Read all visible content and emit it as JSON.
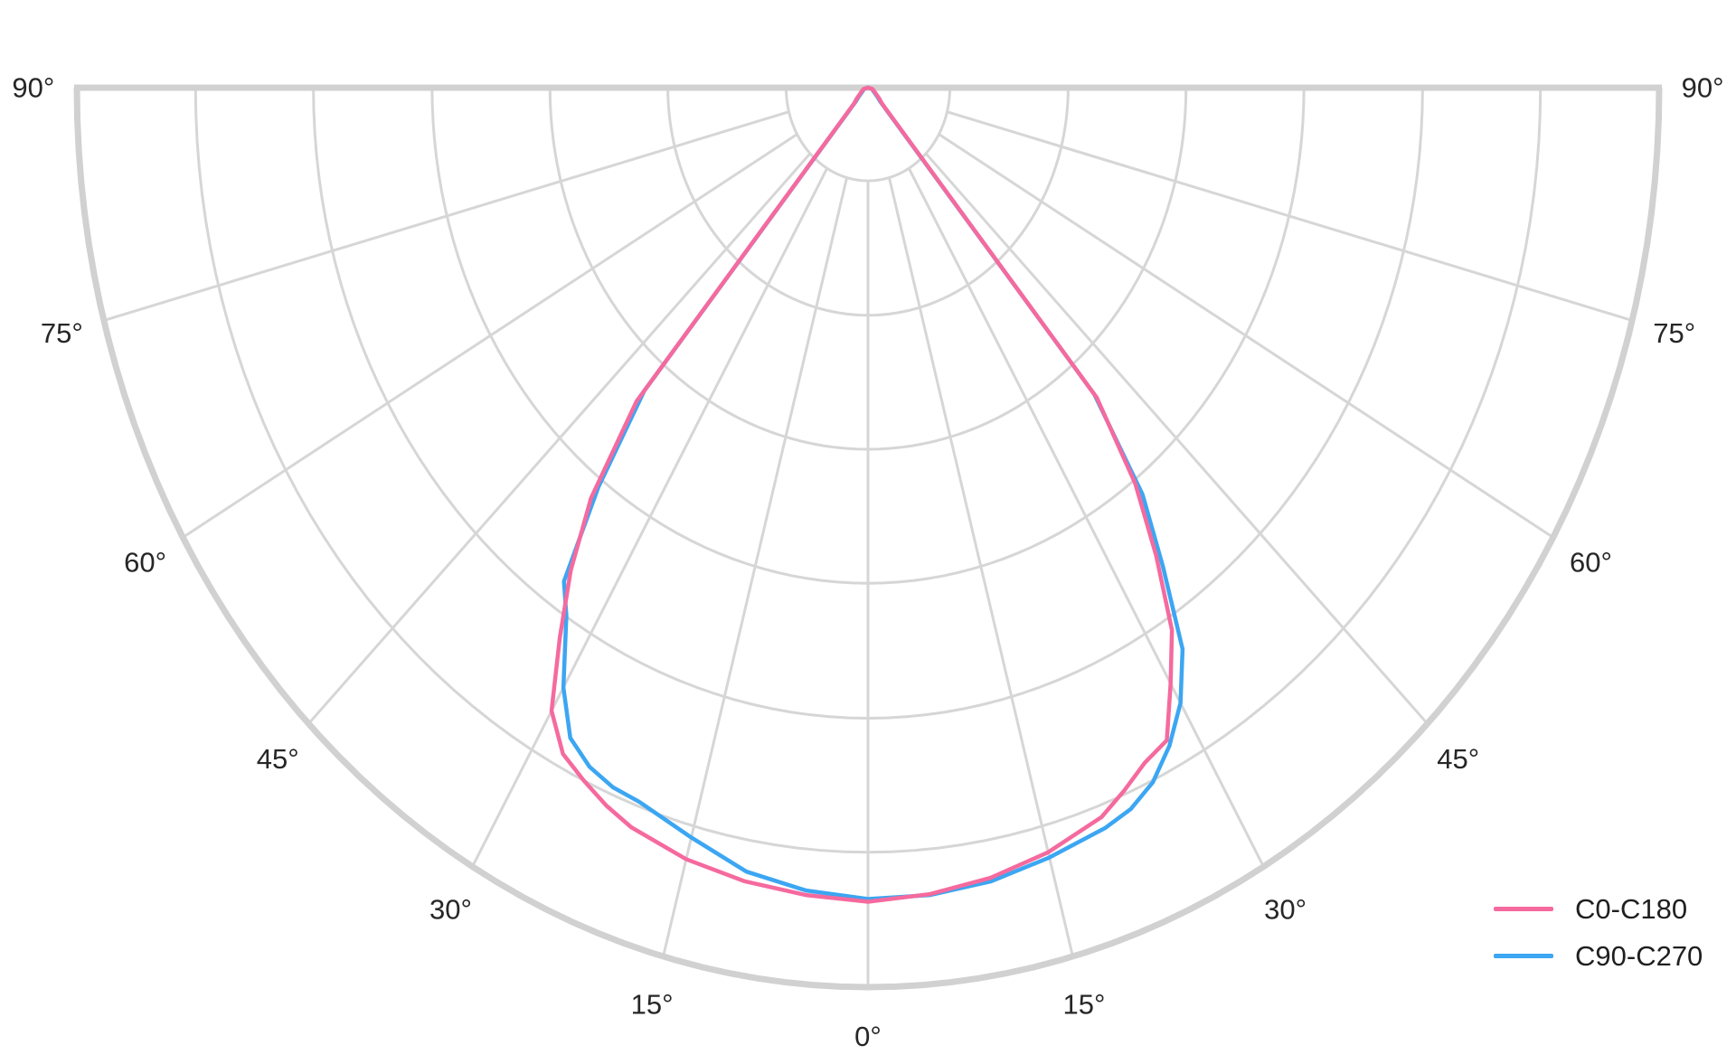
{
  "chart_data": {
    "type": "line",
    "subtype": "polar-photometric-half",
    "title": "",
    "angle_unit": "degrees",
    "angle_ticks": [
      0,
      15,
      30,
      45,
      60,
      75,
      90
    ],
    "angle_tick_suffix": "°",
    "angle_labels_both_sides": true,
    "ring_fractions": [
      0.1035,
      0.253,
      0.402,
      0.551,
      0.701,
      0.85,
      1.0
    ],
    "radial_tick_labels_shown": false,
    "grid": true,
    "legend_position": "bottom-right",
    "colors": {
      "grid": "#d6d6d6",
      "outline": "#d1d1d1",
      "label": "#262626",
      "background": "#ffffff"
    },
    "series": [
      {
        "name": "C0-C180",
        "color": "#f56a9e",
        "points": [
          [
            -90,
            0
          ],
          [
            -75,
            0.006
          ],
          [
            -60,
            0.01
          ],
          [
            -50,
            0.018
          ],
          [
            -45,
            0.025
          ],
          [
            -40,
            0.455
          ],
          [
            -37.5,
            0.575
          ],
          [
            -35,
            0.655
          ],
          [
            -32.5,
            0.725
          ],
          [
            -30,
            0.8
          ],
          [
            -27.5,
            0.835
          ],
          [
            -25,
            0.85
          ],
          [
            -22.5,
            0.864
          ],
          [
            -20,
            0.875
          ],
          [
            -15,
            0.888
          ],
          [
            -10,
            0.896
          ],
          [
            -5,
            0.901
          ],
          [
            0,
            0.905
          ],
          [
            5,
            0.9
          ],
          [
            10,
            0.892
          ],
          [
            15,
            0.88
          ],
          [
            20,
            0.863
          ],
          [
            22.5,
            0.846
          ],
          [
            25,
            0.828
          ],
          [
            27.5,
            0.818
          ],
          [
            30,
            0.765
          ],
          [
            32.5,
            0.715
          ],
          [
            35,
            0.635
          ],
          [
            37.5,
            0.555
          ],
          [
            40,
            0.45
          ],
          [
            45,
            0.025
          ],
          [
            50,
            0.018
          ],
          [
            60,
            0.01
          ],
          [
            75,
            0.006
          ],
          [
            90,
            0
          ]
        ]
      },
      {
        "name": "C90-C270",
        "color": "#3ca6f2",
        "points": [
          [
            -90,
            0
          ],
          [
            -75,
            0.005
          ],
          [
            -60,
            0.008
          ],
          [
            -50,
            0.015
          ],
          [
            -45,
            0.022
          ],
          [
            -40,
            0.44
          ],
          [
            -37.5,
            0.56
          ],
          [
            -35,
            0.67
          ],
          [
            -33,
            0.7
          ],
          [
            -31,
            0.745
          ],
          [
            -30,
            0.77
          ],
          [
            -27.5,
            0.815
          ],
          [
            -25,
            0.833
          ],
          [
            -22.5,
            0.842
          ],
          [
            -20,
            0.845
          ],
          [
            -15,
            0.863
          ],
          [
            -10,
            0.885
          ],
          [
            -5,
            0.896
          ],
          [
            0,
            0.902
          ],
          [
            5,
            0.901
          ],
          [
            10,
            0.896
          ],
          [
            15,
            0.886
          ],
          [
            20,
            0.876
          ],
          [
            22.5,
            0.868
          ],
          [
            25,
            0.852
          ],
          [
            27.5,
            0.825
          ],
          [
            30,
            0.79
          ],
          [
            32.5,
            0.74
          ],
          [
            35,
            0.65
          ],
          [
            37.5,
            0.57
          ],
          [
            40,
            0.445
          ],
          [
            45,
            0.022
          ],
          [
            50,
            0.015
          ],
          [
            60,
            0.008
          ],
          [
            75,
            0.005
          ],
          [
            90,
            0
          ]
        ]
      }
    ]
  },
  "legend": {
    "items": [
      {
        "label": "C0-C180"
      },
      {
        "label": "C90-C270"
      }
    ]
  }
}
